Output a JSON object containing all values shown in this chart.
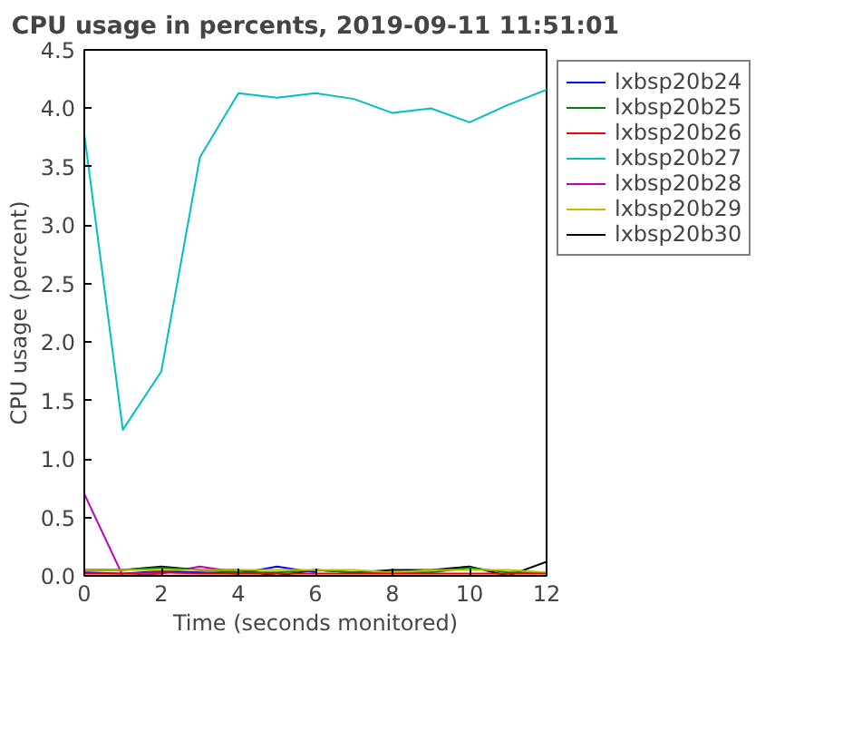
{
  "chart_data": {
    "type": "line",
    "title": "CPU usage in percents, 2019-09-11 11:51:01",
    "xlabel": "Time (seconds monitored)",
    "ylabel": "CPU usage (percent)",
    "x": [
      0,
      1,
      2,
      3,
      4,
      5,
      6,
      7,
      8,
      9,
      10,
      11,
      12
    ],
    "xlim": [
      0,
      12
    ],
    "xticks": [
      0,
      2,
      4,
      6,
      8,
      10,
      12
    ],
    "ylim": [
      0,
      4.5
    ],
    "yticks": [
      {
        "value": 0,
        "label": "0.0"
      },
      {
        "value": 0.5,
        "label": "0.5"
      },
      {
        "value": 1,
        "label": "1.0"
      },
      {
        "value": 1.5,
        "label": "1.5"
      },
      {
        "value": 2,
        "label": "2.0"
      },
      {
        "value": 2.5,
        "label": "2.5"
      },
      {
        "value": 3,
        "label": "3.0"
      },
      {
        "value": 3.5,
        "label": "3.5"
      },
      {
        "value": 4,
        "label": "4.0"
      },
      {
        "value": 4.5,
        "label": "4.5"
      }
    ],
    "legend": "right",
    "grid": false,
    "marker": "none",
    "line_style": "solid",
    "series": [
      {
        "name": "lxbsp20b24",
        "color": "#0000ff",
        "values": [
          0.03,
          0.02,
          0.04,
          0.03,
          0.02,
          0.08,
          0.03,
          null,
          null,
          null,
          null,
          null,
          null
        ]
      },
      {
        "name": "lxbsp20b25",
        "color": "#008000",
        "values": [
          0.05,
          0.05,
          0.07,
          0.05,
          0.03,
          0.03,
          0.05,
          0.03,
          0.03,
          0.03,
          0.07,
          0.03,
          0.03
        ]
      },
      {
        "name": "lxbsp20b26",
        "color": "#ff0000",
        "values": [
          0.02,
          0.02,
          0.03,
          0.02,
          0.02,
          0.02,
          0.02,
          0.02,
          0.02,
          0.02,
          0.02,
          0.02,
          0.02
        ]
      },
      {
        "name": "lxbsp20b27",
        "color": "#00bfbf",
        "values": [
          3.78,
          1.25,
          1.75,
          3.58,
          4.13,
          4.09,
          4.13,
          4.08,
          3.96,
          4.0,
          3.88,
          4.03,
          4.16
        ]
      },
      {
        "name": "lxbsp20b28",
        "color": "#bf00bf",
        "values": [
          0.7,
          0.0,
          0.02,
          0.08,
          0.03,
          null,
          null,
          null,
          null,
          null,
          null,
          null,
          null
        ]
      },
      {
        "name": "lxbsp20b29",
        "color": "#bfbf00",
        "values": [
          0.05,
          0.05,
          0.05,
          0.05,
          0.05,
          0.05,
          0.05,
          0.05,
          0.03,
          0.05,
          0.05,
          0.05,
          0.03
        ]
      },
      {
        "name": "lxbsp20b30",
        "color": "#000000",
        "values": [
          0.05,
          0.05,
          0.08,
          0.05,
          0.05,
          0.0,
          0.05,
          0.03,
          0.05,
          0.05,
          0.08,
          0.0,
          0.12
        ]
      }
    ]
  }
}
